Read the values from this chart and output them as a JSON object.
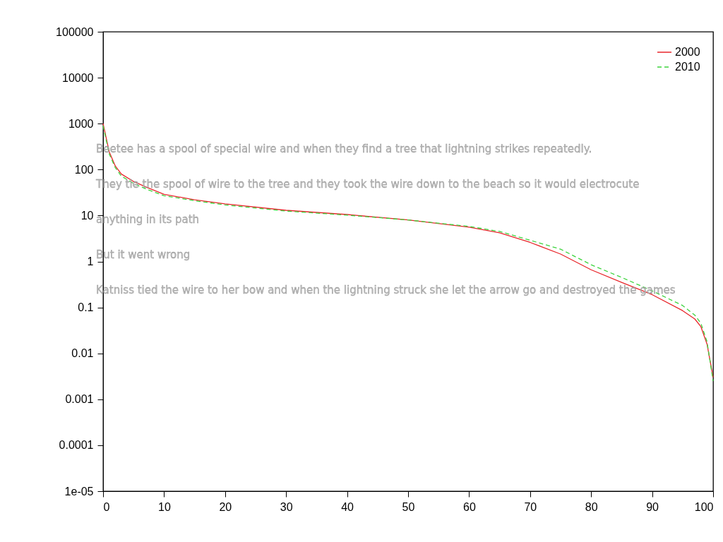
{
  "chart_data": {
    "type": "line",
    "x": [
      0,
      1,
      2,
      3,
      5,
      7,
      10,
      15,
      20,
      30,
      40,
      50,
      60,
      65,
      70,
      75,
      80,
      85,
      90,
      95,
      97,
      98,
      99,
      100
    ],
    "series": [
      {
        "name": "2000",
        "color": "#e8262b",
        "line_style": "solid",
        "values": [
          1000,
          245,
          120,
          80,
          55,
          42,
          29,
          22,
          18,
          13,
          10.5,
          8,
          5.6,
          4.2,
          2.6,
          1.45,
          0.66,
          0.35,
          0.19,
          0.085,
          0.056,
          0.038,
          0.016,
          0.003
        ]
      },
      {
        "name": "2010",
        "color": "#3ed43e",
        "line_style": "dashed",
        "values": [
          900,
          220,
          110,
          72,
          50,
          38,
          27,
          21,
          17,
          12.5,
          10.2,
          8,
          5.8,
          4.5,
          2.9,
          1.85,
          0.85,
          0.45,
          0.23,
          0.11,
          0.068,
          0.045,
          0.018,
          0.0025
        ]
      }
    ],
    "log": "y",
    "xlim": [
      0,
      100
    ],
    "xticks": [
      0,
      10,
      20,
      30,
      40,
      50,
      60,
      70,
      80,
      90,
      100
    ],
    "ylim": [
      1e-05,
      100000
    ],
    "yticks": [
      {
        "value": 1e-05,
        "label": "1e-05"
      },
      0.0001,
      0.001,
      0.01,
      0.1,
      1,
      10,
      100,
      1000,
      10000,
      100000
    ],
    "grid": false,
    "legend": "top right",
    "marker": "none",
    "annotations": [
      "Beetee has a spool of special wire and when they find a tree that lightning strikes repeatedly.",
      "They tie the spool of wire to the tree and they took the wire down to the beach so it would electrocute",
      "anything in its path",
      "But it went wrong",
      "Katniss tied the wire to her bow and when the lightning struck she let the arrow go and destroyed the games"
    ]
  }
}
